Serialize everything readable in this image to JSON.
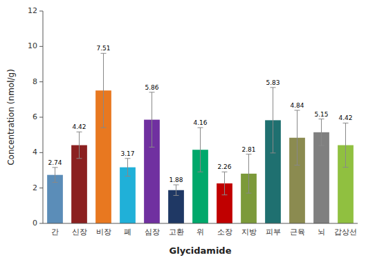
{
  "chart_data": {
    "type": "bar",
    "categories": [
      "간",
      "신장",
      "비장",
      "폐",
      "심장",
      "고환",
      "위",
      "소장",
      "지방",
      "피부",
      "근육",
      "뇌",
      "갑상선"
    ],
    "values": [
      2.74,
      4.42,
      7.51,
      3.17,
      5.86,
      1.88,
      4.16,
      2.26,
      2.81,
      5.83,
      4.84,
      5.15,
      4.42
    ],
    "errors": [
      0.42,
      0.75,
      2.1,
      0.5,
      1.55,
      0.3,
      1.25,
      0.65,
      1.1,
      1.85,
      1.55,
      0.75,
      1.25
    ],
    "colors": [
      "#5B8DB8",
      "#8B2020",
      "#E87820",
      "#20B0D8",
      "#7030A0",
      "#1F3864",
      "#00A86B",
      "#C00000",
      "#7C9A3A",
      "#1F7070",
      "#8B8B50",
      "#808080",
      "#90C040"
    ],
    "ylabel": "Concentration (nmol/g)",
    "xlabel": "Glycidamide",
    "ylim": [
      0,
      12
    ],
    "yticks": [
      0,
      2,
      4,
      6,
      8,
      10,
      12
    ],
    "data_labels": true,
    "grid": false
  }
}
